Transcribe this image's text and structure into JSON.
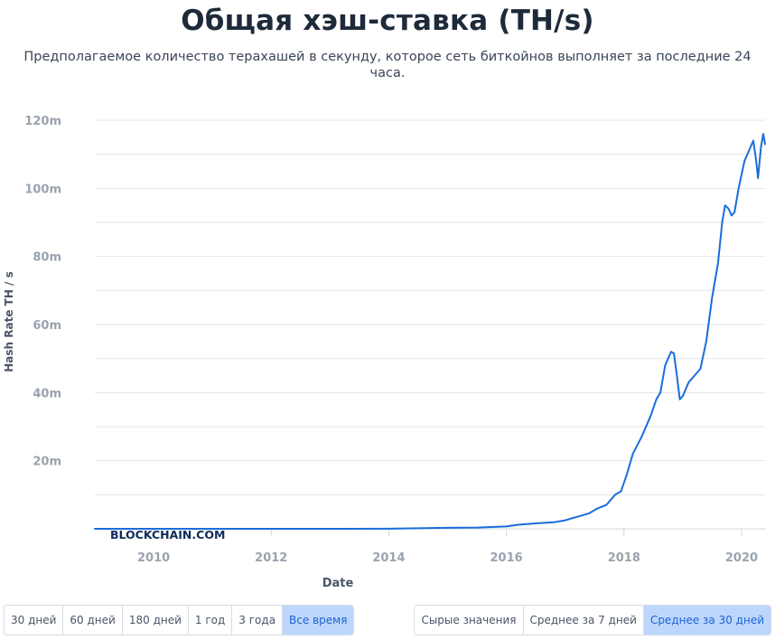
{
  "title": "Общая хэш-ставка (TH/s)",
  "subtitle": "Предполагаемое количество терахашей в секунду, которое сеть биткойнов выполняет за последние 24 часа.",
  "watermark": "BLOCKCHAIN.COM",
  "range_buttons": [
    {
      "label": "30 дней",
      "active": false
    },
    {
      "label": "60 дней",
      "active": false
    },
    {
      "label": "180 дней",
      "active": false
    },
    {
      "label": "1 год",
      "active": false
    },
    {
      "label": "3 года",
      "active": false
    },
    {
      "label": "Все время",
      "active": true
    }
  ],
  "avg_buttons": [
    {
      "label": "Сырые значения",
      "active": false
    },
    {
      "label": "Среднее за 7 дней",
      "active": false
    },
    {
      "label": "Среднее за 30 дней",
      "active": true
    }
  ],
  "colors": {
    "line": "#1a6ddb",
    "grid": "#e6e6e6",
    "axis_text": "#9aa3ae",
    "active_button": "#bcd7fb"
  },
  "chart_data": {
    "type": "line",
    "title": "Общая хэш-ставка (TH/s)",
    "xlabel": "Date",
    "ylabel": "Hash Rate TH / s",
    "x_ticks": [
      "2010",
      "2012",
      "2014",
      "2016",
      "2018",
      "2020"
    ],
    "x_tick_values": [
      2010,
      2012,
      2014,
      2016,
      2018,
      2020
    ],
    "y_ticks": [
      "20m",
      "40m",
      "60m",
      "80m",
      "100m",
      "120m"
    ],
    "y_tick_values": [
      20000000,
      40000000,
      60000000,
      80000000,
      100000000,
      120000000
    ],
    "xlim": [
      2009.0,
      2020.4
    ],
    "ylim": [
      0,
      120000000
    ],
    "grid": true,
    "series": [
      {
        "points": [
          [
            2009.0,
            0
          ],
          [
            2013.0,
            0
          ],
          [
            2014.0,
            30000
          ],
          [
            2014.5,
            150000
          ],
          [
            2015.0,
            300000
          ],
          [
            2015.5,
            380000
          ],
          [
            2016.0,
            700000
          ],
          [
            2016.2,
            1200000
          ],
          [
            2016.5,
            1600000
          ],
          [
            2016.8,
            1900000
          ],
          [
            2017.0,
            2500000
          ],
          [
            2017.2,
            3500000
          ],
          [
            2017.4,
            4500000
          ],
          [
            2017.55,
            6000000
          ],
          [
            2017.7,
            7000000
          ],
          [
            2017.85,
            10000000
          ],
          [
            2017.95,
            11000000
          ],
          [
            2018.05,
            16000000
          ],
          [
            2018.15,
            22000000
          ],
          [
            2018.3,
            27000000
          ],
          [
            2018.45,
            33000000
          ],
          [
            2018.55,
            38000000
          ],
          [
            2018.62,
            40000000
          ],
          [
            2018.7,
            48000000
          ],
          [
            2018.8,
            52000000
          ],
          [
            2018.85,
            51500000
          ],
          [
            2018.9,
            45000000
          ],
          [
            2018.95,
            38000000
          ],
          [
            2019.0,
            39000000
          ],
          [
            2019.1,
            43000000
          ],
          [
            2019.2,
            45000000
          ],
          [
            2019.3,
            47000000
          ],
          [
            2019.4,
            55000000
          ],
          [
            2019.5,
            68000000
          ],
          [
            2019.6,
            78000000
          ],
          [
            2019.67,
            90000000
          ],
          [
            2019.72,
            95000000
          ],
          [
            2019.78,
            94000000
          ],
          [
            2019.83,
            92000000
          ],
          [
            2019.88,
            93000000
          ],
          [
            2019.95,
            100000000
          ],
          [
            2020.05,
            108000000
          ],
          [
            2020.15,
            112000000
          ],
          [
            2020.2,
            114000000
          ],
          [
            2020.25,
            108000000
          ],
          [
            2020.28,
            103000000
          ],
          [
            2020.33,
            112000000
          ],
          [
            2020.37,
            116000000
          ],
          [
            2020.4,
            113000000
          ]
        ]
      }
    ]
  }
}
